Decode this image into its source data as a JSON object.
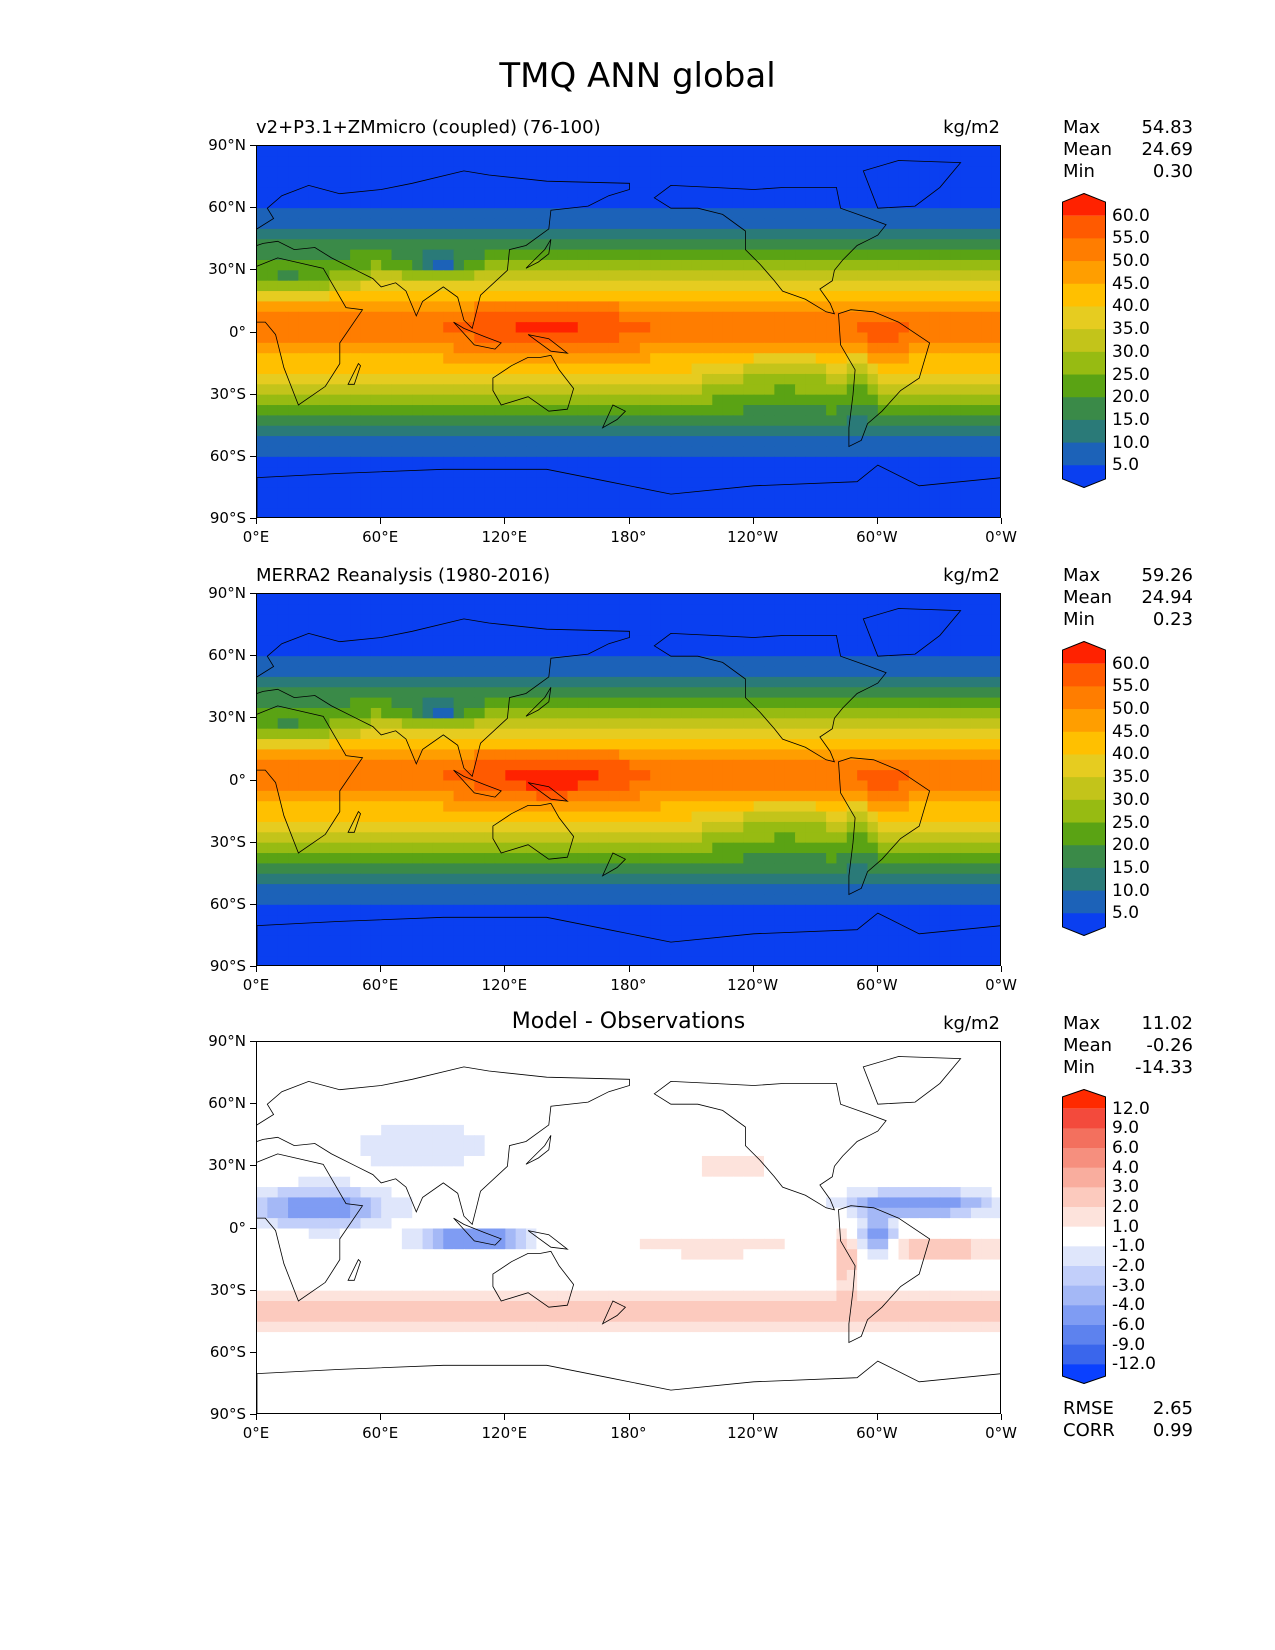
{
  "page_title": "TMQ ANN global",
  "units": "kg/m2",
  "x_ticks": [
    "0°E",
    "60°E",
    "120°E",
    "180°",
    "120°W",
    "60°W",
    "0°W"
  ],
  "y_ticks": [
    "90°N",
    "60°N",
    "30°N",
    "0°",
    "30°S",
    "60°S",
    "90°S"
  ],
  "panels": [
    {
      "title": "v2+P3.1+ZMmicro (coupled) (76-100)",
      "title_align": "left",
      "stats": [
        [
          "Max",
          "54.83"
        ],
        [
          "Mean",
          "24.69"
        ],
        [
          "Min",
          "0.30"
        ]
      ],
      "levels": [
        "60.0",
        "55.0",
        "50.0",
        "45.0",
        "40.0",
        "35.0",
        "30.0",
        "25.0",
        "20.0",
        "15.0",
        "10.0",
        "5.0"
      ],
      "colors": [
        "#ff2200",
        "#ff5a00",
        "#ff7d00",
        "#ff9e00",
        "#ffc000",
        "#e6cc20",
        "#c3c41a",
        "#97bb12",
        "#5aa314",
        "#3a8a48",
        "#2a7a78",
        "#1c62b8",
        "#0a3ff0"
      ]
    },
    {
      "title": "MERRA2 Reanalysis (1980-2016)",
      "title_align": "left",
      "stats": [
        [
          "Max",
          "59.26"
        ],
        [
          "Mean",
          "24.94"
        ],
        [
          "Min",
          "0.23"
        ]
      ],
      "levels": [
        "60.0",
        "55.0",
        "50.0",
        "45.0",
        "40.0",
        "35.0",
        "30.0",
        "25.0",
        "20.0",
        "15.0",
        "10.0",
        "5.0"
      ],
      "colors": [
        "#ff2200",
        "#ff5a00",
        "#ff7d00",
        "#ff9e00",
        "#ffc000",
        "#e6cc20",
        "#c3c41a",
        "#97bb12",
        "#5aa314",
        "#3a8a48",
        "#2a7a78",
        "#1c62b8",
        "#0a3ff0"
      ]
    },
    {
      "title": "Model - Observations",
      "title_align": "center",
      "stats": [
        [
          "Max",
          "11.02"
        ],
        [
          "Mean",
          "-0.26"
        ],
        [
          "Min",
          "-14.33"
        ]
      ],
      "levels": [
        "12.0",
        "9.0",
        "6.0",
        "4.0",
        "3.0",
        "2.0",
        "1.0",
        "-1.0",
        "-2.0",
        "-3.0",
        "-4.0",
        "-6.0",
        "-9.0",
        "-12.0"
      ],
      "colors": [
        "#ff2a00",
        "#f34a3c",
        "#f3705e",
        "#f68f7e",
        "#f9ad9e",
        "#fccabe",
        "#fde3dc",
        "#ffffff",
        "#dfe6fb",
        "#c2cffa",
        "#a4b8f6",
        "#7f9cf3",
        "#5d82ee",
        "#3a66ec",
        "#0a40ff"
      ],
      "footer": [
        [
          "RMSE",
          "2.65"
        ],
        [
          "CORR",
          "0.99"
        ]
      ]
    }
  ]
}
